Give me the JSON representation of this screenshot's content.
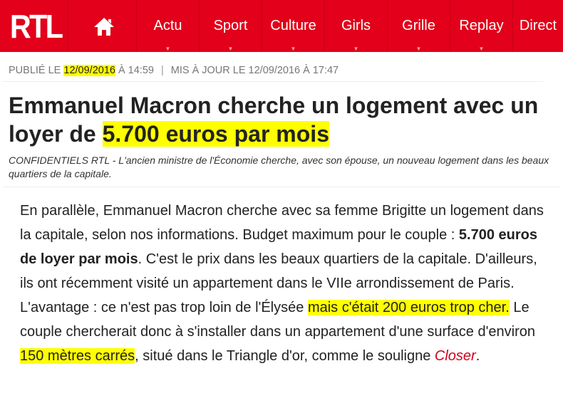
{
  "nav": {
    "logo": "RTL",
    "home_icon": "home-icon",
    "items": [
      "Actu",
      "Sport",
      "Culture",
      "Girls",
      "Grille",
      "Replay",
      "Direct"
    ],
    "brand_color": "#e2001a"
  },
  "meta": {
    "published_label": "PUBLIÉ LE",
    "published_date": "12/09/2016",
    "published_time": "À 14:59",
    "separator": "|",
    "updated": "MIS À JOUR LE 12/09/2016 À 17:47"
  },
  "headline": {
    "part1": "Emmanuel Macron cherche un logement avec un loyer de ",
    "highlight": "5.700 euros par mois"
  },
  "lead": "CONFIDENTIELS RTL - L'ancien ministre de l'Économie cherche, avec son épouse, un nouveau logement dans les beaux quartiers de la capitale.",
  "article": {
    "s1": "En parallèle, Emmanuel Macron cherche avec sa femme Brigitte un logement dans la capitale, selon nos informations. Budget maximum pour le couple : ",
    "bold": "5.700 euros de loyer par mois",
    "s2": ". C'est le prix dans les beaux quartiers de la capitale. D'ailleurs, ils ont récemment visité un appartement dans le VIIe arrondissement de Paris. L'avantage : ce n'est pas trop loin de l'Élysée ",
    "hl1": "mais c'était 200 euros trop cher.",
    "s3": " Le couple chercherait donc à s'installer dans un appartement d'une surface d'environ ",
    "hl2": "150 mètres carrés",
    "s4": ", situé dans le Triangle d'or, comme le souligne ",
    "link": "Closer",
    "s5": "."
  },
  "highlight_color": "#ffff00"
}
